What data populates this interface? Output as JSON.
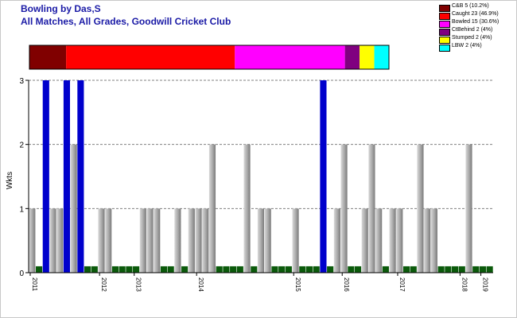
{
  "header": {
    "title": "Bowling by Das,S",
    "subtitle": "All Matches, All Grades, Goodwill Cricket Club"
  },
  "legend": [
    {
      "label": "C&B 5 (10.2%)",
      "color": "#800000",
      "value": 5
    },
    {
      "label": "Caught 23 (46.9%)",
      "color": "#ff0000",
      "value": 23
    },
    {
      "label": "Bowled 15 (30.6%)",
      "color": "#ff00ff",
      "value": 15
    },
    {
      "label": "CtBehind 2 (4%)",
      "color": "#800080",
      "value": 2
    },
    {
      "label": "Stumped 2 (4%)",
      "color": "#ffff00",
      "value": 2
    },
    {
      "label": "LBW 2 (4%)",
      "color": "#00ffff",
      "value": 2
    }
  ],
  "chart_data": {
    "type": "bar",
    "ylabel": "Wkts",
    "xlabel": "",
    "ylim": [
      0,
      3
    ],
    "yticks": [
      0,
      1,
      2,
      3
    ],
    "grid": true,
    "year_labels": [
      {
        "label": "2011",
        "index": 0
      },
      {
        "label": "2012",
        "index": 10
      },
      {
        "label": "2013",
        "index": 15
      },
      {
        "label": "2014",
        "index": 24
      },
      {
        "label": "2015",
        "index": 38
      },
      {
        "label": "2016",
        "index": 45
      },
      {
        "label": "2017",
        "index": 53
      },
      {
        "label": "2018",
        "index": 62
      },
      {
        "label": "2019",
        "index": 65
      }
    ],
    "colors": {
      "gray": "#a0a0a0",
      "blue": "#0000cc",
      "green": "#0b5a0b"
    },
    "bars": [
      {
        "value": 1,
        "kind": "gray"
      },
      {
        "value": 0.1,
        "kind": "green"
      },
      {
        "value": 3,
        "kind": "blue"
      },
      {
        "value": 1,
        "kind": "gray"
      },
      {
        "value": 1,
        "kind": "gray"
      },
      {
        "value": 3,
        "kind": "blue"
      },
      {
        "value": 2,
        "kind": "gray"
      },
      {
        "value": 3,
        "kind": "blue"
      },
      {
        "value": 0.1,
        "kind": "green"
      },
      {
        "value": 0.1,
        "kind": "green"
      },
      {
        "value": 1,
        "kind": "gray"
      },
      {
        "value": 1,
        "kind": "gray"
      },
      {
        "value": 0.1,
        "kind": "green"
      },
      {
        "value": 0.1,
        "kind": "green"
      },
      {
        "value": 0.1,
        "kind": "green"
      },
      {
        "value": 0.1,
        "kind": "green"
      },
      {
        "value": 1,
        "kind": "gray"
      },
      {
        "value": 1,
        "kind": "gray"
      },
      {
        "value": 1,
        "kind": "gray"
      },
      {
        "value": 0.1,
        "kind": "green"
      },
      {
        "value": 0.1,
        "kind": "green"
      },
      {
        "value": 1,
        "kind": "gray"
      },
      {
        "value": 0.1,
        "kind": "green"
      },
      {
        "value": 1,
        "kind": "gray"
      },
      {
        "value": 1,
        "kind": "gray"
      },
      {
        "value": 1,
        "kind": "gray"
      },
      {
        "value": 2,
        "kind": "gray"
      },
      {
        "value": 0.1,
        "kind": "green"
      },
      {
        "value": 0.1,
        "kind": "green"
      },
      {
        "value": 0.1,
        "kind": "green"
      },
      {
        "value": 0.1,
        "kind": "green"
      },
      {
        "value": 2,
        "kind": "gray"
      },
      {
        "value": 0.1,
        "kind": "green"
      },
      {
        "value": 1,
        "kind": "gray"
      },
      {
        "value": 1,
        "kind": "gray"
      },
      {
        "value": 0.1,
        "kind": "green"
      },
      {
        "value": 0.1,
        "kind": "green"
      },
      {
        "value": 0.1,
        "kind": "green"
      },
      {
        "value": 1,
        "kind": "gray"
      },
      {
        "value": 0.1,
        "kind": "green"
      },
      {
        "value": 0.1,
        "kind": "green"
      },
      {
        "value": 0.1,
        "kind": "green"
      },
      {
        "value": 3,
        "kind": "blue"
      },
      {
        "value": 0.1,
        "kind": "green"
      },
      {
        "value": 1,
        "kind": "gray"
      },
      {
        "value": 2,
        "kind": "gray"
      },
      {
        "value": 0.1,
        "kind": "green"
      },
      {
        "value": 0.1,
        "kind": "green"
      },
      {
        "value": 1,
        "kind": "gray"
      },
      {
        "value": 2,
        "kind": "gray"
      },
      {
        "value": 1,
        "kind": "gray"
      },
      {
        "value": 0.1,
        "kind": "green"
      },
      {
        "value": 1,
        "kind": "gray"
      },
      {
        "value": 1,
        "kind": "gray"
      },
      {
        "value": 0.1,
        "kind": "green"
      },
      {
        "value": 0.1,
        "kind": "green"
      },
      {
        "value": 2,
        "kind": "gray"
      },
      {
        "value": 1,
        "kind": "gray"
      },
      {
        "value": 1,
        "kind": "gray"
      },
      {
        "value": 0.1,
        "kind": "green"
      },
      {
        "value": 0.1,
        "kind": "green"
      },
      {
        "value": 0.1,
        "kind": "green"
      },
      {
        "value": 0.1,
        "kind": "green"
      },
      {
        "value": 2,
        "kind": "gray"
      },
      {
        "value": 0.1,
        "kind": "green"
      },
      {
        "value": 0.1,
        "kind": "green"
      },
      {
        "value": 0.1,
        "kind": "green"
      }
    ]
  }
}
